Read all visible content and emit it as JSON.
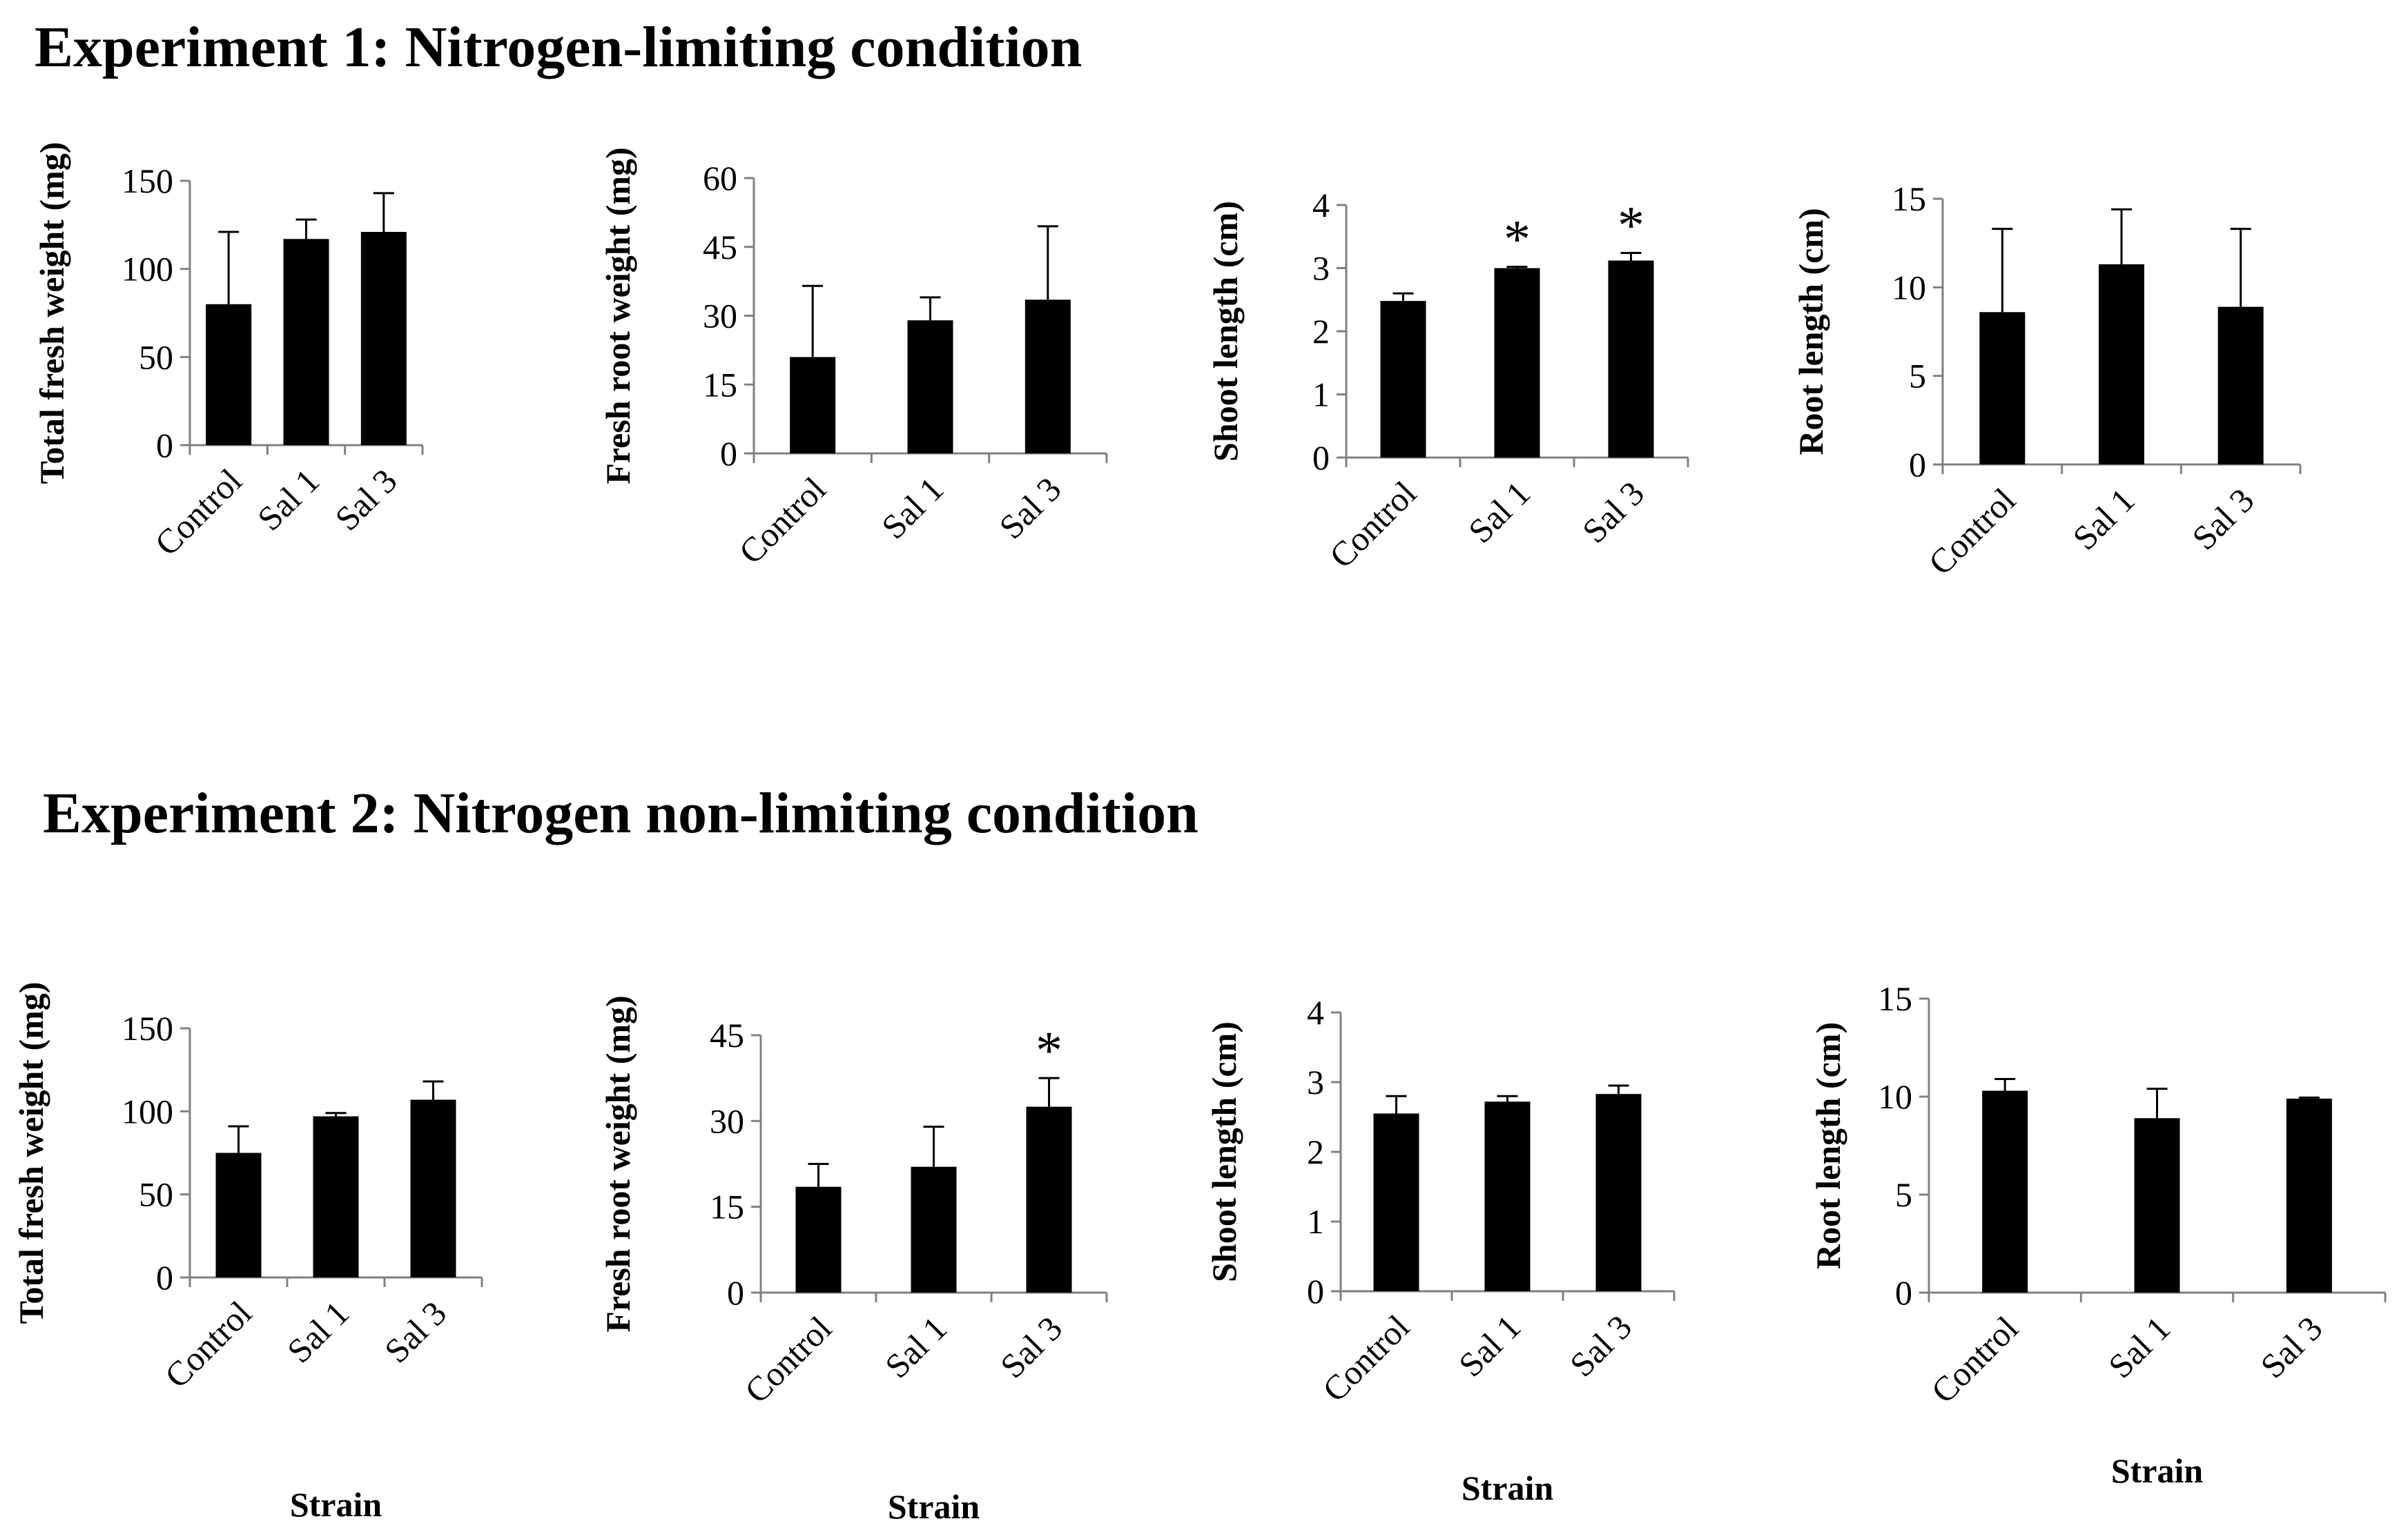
{
  "headings": {
    "exp1": "Experiment 1: Nitrogen-limiting  condition",
    "exp2": "Experiment 2: Nitrogen non-limiting  condition"
  },
  "colors": {
    "bar": "#000000",
    "axis": "#808080",
    "text": "#000000"
  },
  "chart_data": [
    {
      "type": "bar",
      "experiment": "Experiment 1",
      "categories": [
        "Control",
        "Sal 1",
        "Sal 3"
      ],
      "values": [
        80,
        117,
        121
      ],
      "errors": [
        41,
        11,
        22
      ],
      "significance": [
        "",
        "",
        ""
      ],
      "ylabel": "Total fresh weight (mg)",
      "xlabel": "",
      "ylim": [
        0,
        150
      ],
      "yticks": [
        0,
        50,
        100,
        150
      ]
    },
    {
      "type": "bar",
      "experiment": "Experiment 1",
      "categories": [
        "Control",
        "Sal 1",
        "Sal 3"
      ],
      "values": [
        21,
        29,
        33.5
      ],
      "errors": [
        15.5,
        5,
        16
      ],
      "significance": [
        "",
        "",
        ""
      ],
      "ylabel": "Fresh root weight (mg)",
      "xlabel": "",
      "ylim": [
        0,
        60
      ],
      "yticks": [
        0,
        15,
        30,
        45,
        60
      ]
    },
    {
      "type": "bar",
      "experiment": "Experiment 1",
      "categories": [
        "Control",
        "Sal 1",
        "Sal 3"
      ],
      "values": [
        2.48,
        3.0,
        3.12
      ],
      "errors": [
        0.12,
        0.02,
        0.12
      ],
      "significance": [
        "",
        "*",
        "*"
      ],
      "ylabel": "Shoot length (cm)",
      "xlabel": "",
      "ylim": [
        0,
        4
      ],
      "yticks": [
        0,
        1,
        2,
        3,
        4
      ]
    },
    {
      "type": "bar",
      "experiment": "Experiment 1",
      "categories": [
        "Control",
        "Sal 1",
        "Sal 3"
      ],
      "values": [
        8.6,
        11.3,
        8.9
      ],
      "errors": [
        4.7,
        3.1,
        4.4
      ],
      "significance": [
        "",
        "",
        ""
      ],
      "ylabel": "Root length (cm)",
      "xlabel": "",
      "ylim": [
        0,
        15
      ],
      "yticks": [
        0,
        5,
        10,
        15
      ]
    },
    {
      "type": "bar",
      "experiment": "Experiment 2",
      "categories": [
        "Control",
        "Sal 1",
        "Sal 3"
      ],
      "values": [
        75,
        97,
        107
      ],
      "errors": [
        16,
        2,
        11
      ],
      "significance": [
        "",
        "",
        ""
      ],
      "ylabel": "Total fresh weight (mg)",
      "xlabel": "Strain",
      "ylim": [
        0,
        150
      ],
      "yticks": [
        0,
        50,
        100,
        150
      ]
    },
    {
      "type": "bar",
      "experiment": "Experiment 2",
      "categories": [
        "Control",
        "Sal 1",
        "Sal 3"
      ],
      "values": [
        18.5,
        22,
        32.5
      ],
      "errors": [
        4,
        7,
        5
      ],
      "significance": [
        "",
        "",
        "*"
      ],
      "ylabel": "Fresh root weight (mg)",
      "xlabel": "Strain",
      "ylim": [
        0,
        45
      ],
      "yticks": [
        0,
        15,
        30,
        45
      ]
    },
    {
      "type": "bar",
      "experiment": "Experiment 2",
      "categories": [
        "Control",
        "Sal 1",
        "Sal 3"
      ],
      "values": [
        2.55,
        2.72,
        2.83
      ],
      "errors": [
        0.25,
        0.08,
        0.12
      ],
      "significance": [
        "",
        "",
        ""
      ],
      "ylabel": "Shoot length (cm)",
      "xlabel": "Strain",
      "ylim": [
        0,
        4
      ],
      "yticks": [
        0,
        1,
        2,
        3,
        4
      ]
    },
    {
      "type": "bar",
      "experiment": "Experiment 2",
      "categories": [
        "Control",
        "Sal 1",
        "Sal 3"
      ],
      "values": [
        10.3,
        8.9,
        9.9
      ],
      "errors": [
        0.6,
        1.5,
        0.05
      ],
      "significance": [
        "",
        "",
        ""
      ],
      "ylabel": "Root length (cm)",
      "xlabel": "Strain",
      "ylim": [
        0,
        15
      ],
      "yticks": [
        0,
        5,
        10,
        15
      ]
    }
  ]
}
